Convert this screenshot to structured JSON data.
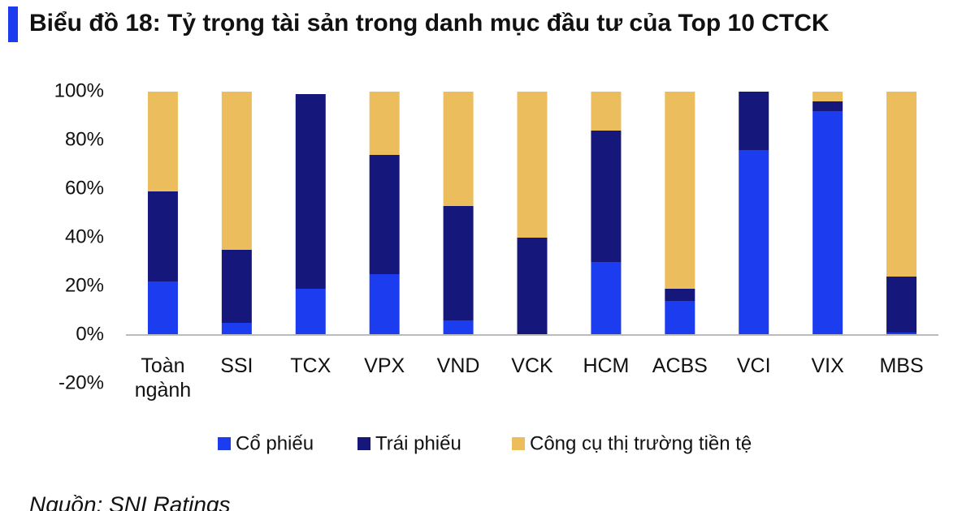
{
  "chart_data": {
    "type": "stacked_bar",
    "title": "Biểu đồ 18: Tỷ trọng tài sản trong danh mục đầu tư của Top 10 CTCK",
    "source": "Nguồn: SNI Ratings",
    "categories": [
      "Toàn ngành",
      "SSI",
      "TCX",
      "VPX",
      "VND",
      "VCK",
      "HCM",
      "ACBS",
      "VCI",
      "VIX",
      "MBS"
    ],
    "series": [
      {
        "name": "Cổ phiếu",
        "color": "#1c3cf0",
        "values": [
          22,
          5,
          19,
          25,
          6,
          0,
          30,
          14,
          76,
          92,
          1
        ]
      },
      {
        "name": "Trái phiếu",
        "color": "#16177a",
        "values": [
          37,
          30,
          80,
          49,
          47,
          40,
          54,
          5,
          24,
          4,
          23
        ]
      },
      {
        "name": "Công cụ thị trường tiền tệ",
        "color": "#ebbd5c",
        "values": [
          41,
          65,
          0,
          26,
          47,
          60,
          16,
          81,
          0,
          4,
          76
        ]
      }
    ],
    "ylim": [
      -20,
      100
    ],
    "yticks": [
      {
        "value": -20,
        "label": "-20%"
      },
      {
        "value": 0,
        "label": "0%"
      },
      {
        "value": 20,
        "label": "20%"
      },
      {
        "value": 40,
        "label": "40%"
      },
      {
        "value": 60,
        "label": "60%"
      },
      {
        "value": 80,
        "label": "80%"
      },
      {
        "value": 100,
        "label": "100%"
      }
    ],
    "grid": false,
    "legend": "bottom"
  }
}
